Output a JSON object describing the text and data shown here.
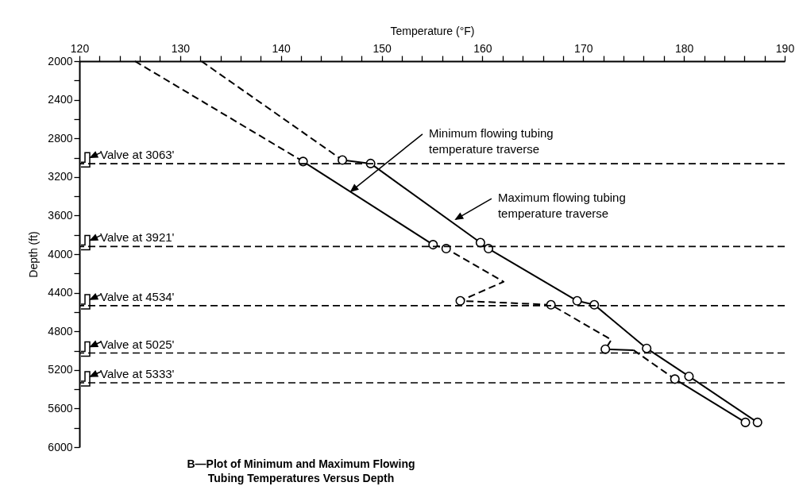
{
  "chart_data": {
    "type": "line",
    "title": "B—Plot of Minimum and Maximum Flowing Tubing Temperatures Versus Depth",
    "xlabel": "Temperature (°F)",
    "ylabel": "Depth (ft)",
    "xlim": [
      120,
      190
    ],
    "ylim": [
      6000,
      2000
    ],
    "xticks": [
      120,
      {
        "value": 122,
        "label": null
      },
      {
        "value": 124,
        "label": null
      },
      {
        "value": 126,
        "label": null
      },
      {
        "value": 128,
        "label": null
      },
      130,
      {
        "value": 132,
        "label": null
      },
      {
        "value": 134,
        "label": null
      },
      {
        "value": 136,
        "label": null
      },
      {
        "value": 138,
        "label": null
      },
      140,
      {
        "value": 142,
        "label": null
      },
      {
        "value": 144,
        "label": null
      },
      {
        "value": 146,
        "label": null
      },
      {
        "value": 148,
        "label": null
      },
      150,
      {
        "value": 152,
        "label": null
      },
      {
        "value": 154,
        "label": null
      },
      {
        "value": 156,
        "label": null
      },
      {
        "value": 158,
        "label": null
      },
      160,
      {
        "value": 162,
        "label": null
      },
      {
        "value": 164,
        "label": null
      },
      {
        "value": 166,
        "label": null
      },
      {
        "value": 168,
        "label": null
      },
      170,
      {
        "value": 172,
        "label": null
      },
      {
        "value": 174,
        "label": null
      },
      {
        "value": 176,
        "label": null
      },
      {
        "value": 178,
        "label": null
      },
      180,
      {
        "value": 182,
        "label": null
      },
      {
        "value": 184,
        "label": null
      },
      {
        "value": 186,
        "label": null
      },
      {
        "value": 188,
        "label": null
      },
      190
    ],
    "yticks": [
      2000,
      {
        "value": 2200,
        "label": null
      },
      2400,
      {
        "value": 2600,
        "label": null
      },
      2800,
      {
        "value": 3000,
        "label": null
      },
      3200,
      {
        "value": 3400,
        "label": null
      },
      3600,
      {
        "value": 3800,
        "label": null
      },
      4000,
      {
        "value": 4200,
        "label": null
      },
      4400,
      {
        "value": 4600,
        "label": null
      },
      4800,
      {
        "value": 5000,
        "label": null
      },
      5200,
      {
        "value": 5400,
        "label": null
      },
      5600,
      {
        "value": 5800,
        "label": null
      },
      6000
    ],
    "grid": false,
    "series": [
      {
        "type": "line",
        "line_style": "dashed",
        "color": "#000000",
        "x": [
          125.5,
          142.2
        ],
        "values": [
          2000,
          3040
        ]
      },
      {
        "type": "line",
        "line_style": "solid",
        "color": "#000000",
        "x": [
          142.2,
          155.1
        ],
        "values": [
          3040,
          3902
        ]
      },
      {
        "type": "line",
        "line_style": "dashed",
        "color": "#000000",
        "x": [
          155.1,
          156.4,
          162.1,
          157.8,
          166.8,
          172.8,
          172.2
        ],
        "values": [
          3902,
          3943,
          4286,
          4484,
          4525,
          4887,
          4985
        ]
      },
      {
        "type": "line",
        "line_style": "solid",
        "color": "#000000",
        "x": [
          172.2,
          175.0
        ],
        "values": [
          4985,
          4995
        ]
      },
      {
        "type": "line",
        "line_style": "dashed",
        "color": "#000000",
        "x": [
          175.0,
          179.1
        ],
        "values": [
          4995,
          5295
        ]
      },
      {
        "type": "line",
        "line_style": "solid",
        "color": "#000000",
        "x": [
          179.1,
          186.1
        ],
        "values": [
          5295,
          5744
        ]
      },
      {
        "type": "line",
        "line_style": "dashed",
        "color": "#000000",
        "x": [
          132.1,
          146.1
        ],
        "values": [
          2000,
          3025
        ]
      },
      {
        "type": "line",
        "line_style": "solid",
        "color": "#000000",
        "x": [
          146.1,
          148.9,
          159.8,
          160.6,
          169.4,
          171.1,
          176.3,
          180.5,
          187.3
        ],
        "values": [
          3025,
          3061,
          3881,
          3943,
          4484,
          4525,
          4977,
          5267,
          5744
        ]
      },
      {
        "type": "scatter",
        "marker": "circle",
        "color": "#000000",
        "x": [
          142.2,
          155.1,
          156.4,
          157.8,
          166.8,
          172.2,
          179.1,
          186.1
        ],
        "values": [
          3040,
          3902,
          3943,
          4484,
          4525,
          4985,
          5295,
          5744
        ]
      },
      {
        "type": "scatter",
        "marker": "circle",
        "color": "#000000",
        "x": [
          146.1,
          148.9,
          159.8,
          160.6,
          169.4,
          171.1,
          176.3,
          180.5,
          187.3
        ],
        "values": [
          3025,
          3061,
          3881,
          3943,
          4484,
          4525,
          4977,
          5267,
          5744
        ]
      }
    ],
    "ref_lines": [
      {
        "axis": "y",
        "value": 3063,
        "label": "Valve at 3063'",
        "color": "#000000",
        "line_style": "dashed"
      },
      {
        "axis": "y",
        "value": 3921,
        "label": "Valve at 3921'",
        "color": "#000000",
        "line_style": "dashed"
      },
      {
        "axis": "y",
        "value": 4534,
        "label": "Valve at 4534'",
        "color": "#000000",
        "line_style": "dashed"
      },
      {
        "axis": "y",
        "value": 5025,
        "label": "Valve at 5025'",
        "color": "#000000",
        "line_style": "dashed"
      },
      {
        "axis": "y",
        "value": 5333,
        "label": "Valve at 5333'",
        "color": "#000000",
        "line_style": "dashed"
      }
    ],
    "annotations": [
      {
        "text": "Minimum flowing tubing temperature traverse",
        "x": 146.8,
        "y": 3365
      },
      {
        "text": "Maximum flowing tubing temperature traverse",
        "x": 157.2,
        "y": 3655
      }
    ]
  }
}
